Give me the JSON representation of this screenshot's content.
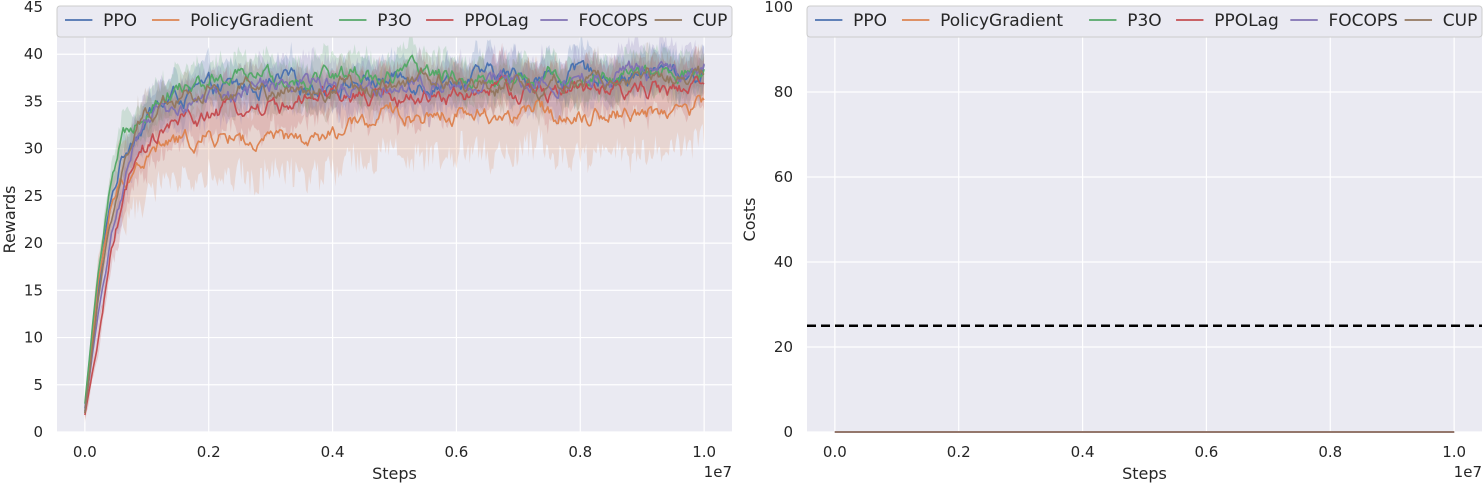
{
  "chart_data": [
    {
      "type": "line",
      "xlabel": "Steps",
      "ylabel": "Rewards",
      "x_offset_label": "1e7",
      "xlim": [
        -0.045,
        1.045
      ],
      "ylim": [
        0,
        45
      ],
      "xticks": [
        "0.0",
        "0.2",
        "0.4",
        "0.6",
        "0.8",
        "1.0"
      ],
      "yticks": [
        "0",
        "5",
        "10",
        "15",
        "20",
        "25",
        "30",
        "35",
        "40",
        "45"
      ],
      "grid": true,
      "legend": "top",
      "series": [
        {
          "name": "PPO",
          "color": "#4c72b0",
          "x": [
            0,
            0.02,
            0.04,
            0.06,
            0.08,
            0.1,
            0.12,
            0.15,
            0.2,
            0.3,
            0.4,
            0.5,
            0.6,
            0.7,
            0.8,
            0.9,
            1.0
          ],
          "y": [
            2.5,
            14,
            24,
            29,
            32,
            33.5,
            34.5,
            35.5,
            36,
            36.5,
            37,
            37.3,
            37.5,
            37.6,
            37.8,
            38,
            38
          ],
          "spread": 2.0
        },
        {
          "name": "PolicyGradient",
          "color": "#dd8452",
          "x": [
            0,
            0.02,
            0.04,
            0.06,
            0.08,
            0.1,
            0.12,
            0.15,
            0.2,
            0.25,
            0.28,
            0.3,
            0.35,
            0.4,
            0.45,
            0.5,
            0.6,
            0.7,
            0.8,
            0.9,
            1.0
          ],
          "y": [
            2,
            15,
            23,
            26.5,
            28,
            29,
            30,
            30.5,
            31,
            31.5,
            30,
            30.5,
            30.5,
            31,
            32.5,
            33.5,
            34,
            33.5,
            34,
            34,
            34.5
          ],
          "spread": 4.0
        },
        {
          "name": "P3O",
          "color": "#55a868",
          "x": [
            0,
            0.02,
            0.04,
            0.06,
            0.08,
            0.1,
            0.12,
            0.15,
            0.2,
            0.3,
            0.4,
            0.5,
            0.6,
            0.7,
            0.8,
            0.9,
            1.0
          ],
          "y": [
            3,
            16,
            25,
            30,
            33,
            35,
            36,
            36.5,
            37,
            37.5,
            38,
            37.8,
            37.8,
            37.5,
            37.8,
            37.5,
            37.5
          ],
          "spread": 2.0
        },
        {
          "name": "PPOLag",
          "color": "#c44e52",
          "x": [
            0,
            0.02,
            0.04,
            0.06,
            0.08,
            0.1,
            0.12,
            0.15,
            0.2,
            0.3,
            0.4,
            0.5,
            0.6,
            0.7,
            0.8,
            0.9,
            1.0
          ],
          "y": [
            1.8,
            9,
            18,
            24,
            27.5,
            29.5,
            31,
            32.5,
            33.5,
            34.5,
            35,
            35.5,
            35.8,
            36,
            36,
            36.2,
            36.5
          ],
          "spread": 2.5
        },
        {
          "name": "FOCOPS",
          "color": "#8172b3",
          "x": [
            0,
            0.02,
            0.04,
            0.06,
            0.08,
            0.1,
            0.12,
            0.15,
            0.2,
            0.3,
            0.4,
            0.5,
            0.6,
            0.7,
            0.8,
            0.9,
            1.0
          ],
          "y": [
            2.2,
            12,
            20,
            26,
            29.5,
            32,
            33.5,
            34.5,
            35.5,
            36.3,
            36.8,
            37,
            37.3,
            37.3,
            37.6,
            37.8,
            38
          ],
          "spread": 2.5
        },
        {
          "name": "CUP",
          "color": "#937860",
          "x": [
            0,
            0.02,
            0.04,
            0.06,
            0.08,
            0.1,
            0.12,
            0.15,
            0.2,
            0.3,
            0.4,
            0.5,
            0.6,
            0.7,
            0.8,
            0.9,
            1.0
          ],
          "y": [
            2,
            13,
            22,
            28,
            31.5,
            33.5,
            34.5,
            35.5,
            36,
            36.3,
            36.6,
            36.8,
            37,
            37,
            37.2,
            37.2,
            37.3
          ],
          "spread": 2.0
        }
      ]
    },
    {
      "type": "line",
      "xlabel": "Steps",
      "ylabel": "Costs",
      "x_offset_label": "1e7",
      "xlim": [
        -0.045,
        1.045
      ],
      "ylim": [
        0,
        100
      ],
      "xticks": [
        "0.0",
        "0.2",
        "0.4",
        "0.6",
        "0.8",
        "1.0"
      ],
      "yticks": [
        "0",
        "20",
        "40",
        "60",
        "80",
        "100"
      ],
      "grid": true,
      "legend": "top",
      "threshold": {
        "value": 25,
        "color": "#000000",
        "style": "dashed"
      },
      "series": [
        {
          "name": "PPO",
          "color": "#4c72b0",
          "x": [
            0,
            1.0
          ],
          "y": [
            0,
            0
          ]
        },
        {
          "name": "PolicyGradient",
          "color": "#dd8452",
          "x": [
            0,
            1.0
          ],
          "y": [
            0,
            0
          ]
        },
        {
          "name": "P3O",
          "color": "#55a868",
          "x": [
            0,
            1.0
          ],
          "y": [
            0,
            0
          ]
        },
        {
          "name": "PPOLag",
          "color": "#c44e52",
          "x": [
            0,
            1.0
          ],
          "y": [
            0,
            0
          ]
        },
        {
          "name": "FOCOPS",
          "color": "#8172b3",
          "x": [
            0,
            1.0
          ],
          "y": [
            0,
            0
          ]
        },
        {
          "name": "CUP",
          "color": "#937860",
          "x": [
            0,
            1.0
          ],
          "y": [
            0,
            0
          ]
        }
      ]
    }
  ],
  "colors": {
    "plot_background": "#eaeaf2",
    "grid": "#ffffff",
    "legend_background": "#eaeaf2"
  }
}
